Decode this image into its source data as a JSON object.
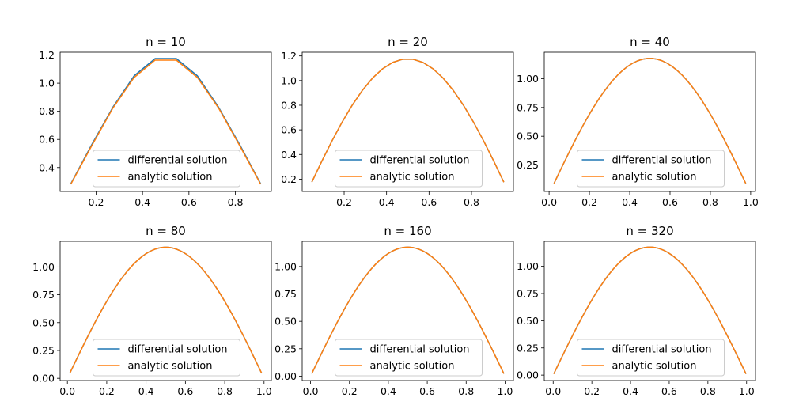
{
  "chart_data": [
    {
      "type": "line",
      "title": "n = 10",
      "n": 10,
      "xlim": [
        0.045,
        0.955
      ],
      "ylim": [
        0.23,
        1.22
      ],
      "xticks": [
        0.2,
        0.4,
        0.6,
        0.8
      ],
      "xticklabels": [
        "0.2",
        "0.4",
        "0.6",
        "0.8"
      ],
      "yticks": [
        0.4,
        0.6,
        0.8,
        1.0,
        1.2
      ],
      "yticklabels": [
        "0.4",
        "0.6",
        "0.8",
        "1.0",
        "1.2"
      ],
      "series": [
        {
          "name": "differential solution",
          "color": "#1f77b4",
          "x": [
            0.0909,
            0.1818,
            0.2727,
            0.3636,
            0.4545,
            0.5455,
            0.6364,
            0.7273,
            0.8182,
            0.9091
          ],
          "y": [
            0.284,
            0.565,
            0.83,
            1.052,
            1.175,
            1.175,
            1.052,
            0.83,
            0.565,
            0.284
          ]
        },
        {
          "name": "analytic solution",
          "color": "#ff7f0e",
          "x": [
            0.0909,
            0.1818,
            0.2727,
            0.3636,
            0.4545,
            0.5455,
            0.6364,
            0.7273,
            0.8182,
            0.9091
          ],
          "y": [
            0.281,
            0.557,
            0.824,
            1.04,
            1.164,
            1.164,
            1.04,
            0.824,
            0.557,
            0.281
          ]
        }
      ],
      "legend": "lower center",
      "grid": false
    },
    {
      "type": "line",
      "title": "n = 20",
      "n": 20,
      "xlim": [
        0.0024,
        0.9976
      ],
      "ylim": [
        0.1,
        1.23
      ],
      "xticks": [
        0.2,
        0.4,
        0.6,
        0.8
      ],
      "xticklabels": [
        "0.2",
        "0.4",
        "0.6",
        "0.8"
      ],
      "yticks": [
        0.2,
        0.4,
        0.6,
        0.8,
        1.0,
        1.2
      ],
      "yticklabels": [
        "0.2",
        "0.4",
        "0.6",
        "0.8",
        "1.0",
        "1.2"
      ],
      "series": [
        {
          "name": "differential solution",
          "color": "#1f77b4"
        },
        {
          "name": "analytic solution",
          "color": "#ff7f0e"
        }
      ],
      "legend": "lower center",
      "grid": false
    },
    {
      "type": "line",
      "title": "n = 40",
      "n": 40,
      "xlim": [
        -0.024,
        1.024
      ],
      "ylim": [
        0.02,
        1.23
      ],
      "xticks": [
        0.0,
        0.2,
        0.4,
        0.6,
        0.8,
        1.0
      ],
      "xticklabels": [
        "0.0",
        "0.2",
        "0.4",
        "0.6",
        "0.8",
        "1.0"
      ],
      "yticks": [
        0.25,
        0.5,
        0.75,
        1.0
      ],
      "yticklabels": [
        "0.25",
        "0.50",
        "0.75",
        "1.00"
      ],
      "series": [
        {
          "name": "differential solution",
          "color": "#1f77b4"
        },
        {
          "name": "analytic solution",
          "color": "#ff7f0e"
        }
      ],
      "legend": "lower center",
      "grid": false
    },
    {
      "type": "line",
      "title": "n = 80",
      "n": 80,
      "xlim": [
        -0.037,
        1.037
      ],
      "ylim": [
        -0.02,
        1.23
      ],
      "xticks": [
        0.0,
        0.2,
        0.4,
        0.6,
        0.8,
        1.0
      ],
      "xticklabels": [
        "0.0",
        "0.2",
        "0.4",
        "0.6",
        "0.8",
        "1.0"
      ],
      "yticks": [
        0.0,
        0.25,
        0.5,
        0.75,
        1.0
      ],
      "yticklabels": [
        "0.00",
        "0.25",
        "0.50",
        "0.75",
        "1.00"
      ],
      "series": [
        {
          "name": "differential solution",
          "color": "#1f77b4"
        },
        {
          "name": "analytic solution",
          "color": "#ff7f0e"
        }
      ],
      "legend": "lower center",
      "grid": false
    },
    {
      "type": "line",
      "title": "n = 160",
      "n": 160,
      "xlim": [
        -0.043,
        1.043
      ],
      "ylim": [
        -0.04,
        1.23
      ],
      "xticks": [
        0.0,
        0.2,
        0.4,
        0.6,
        0.8,
        1.0
      ],
      "xticklabels": [
        "0.0",
        "0.2",
        "0.4",
        "0.6",
        "0.8",
        "1.0"
      ],
      "yticks": [
        0.0,
        0.25,
        0.5,
        0.75,
        1.0
      ],
      "yticklabels": [
        "0.00",
        "0.25",
        "0.50",
        "0.75",
        "1.00"
      ],
      "series": [
        {
          "name": "differential solution",
          "color": "#1f77b4"
        },
        {
          "name": "analytic solution",
          "color": "#ff7f0e"
        }
      ],
      "legend": "lower center",
      "grid": false
    },
    {
      "type": "line",
      "title": "n = 320",
      "n": 320,
      "xlim": [
        -0.046,
        1.046
      ],
      "ylim": [
        -0.05,
        1.23
      ],
      "xticks": [
        0.0,
        0.2,
        0.4,
        0.6,
        0.8,
        1.0
      ],
      "xticklabels": [
        "0.0",
        "0.2",
        "0.4",
        "0.6",
        "0.8",
        "1.0"
      ],
      "yticks": [
        0.0,
        0.25,
        0.5,
        0.75,
        1.0
      ],
      "yticklabels": [
        "0.00",
        "0.25",
        "0.50",
        "0.75",
        "1.00"
      ],
      "series": [
        {
          "name": "differential solution",
          "color": "#1f77b4"
        },
        {
          "name": "analytic solution",
          "color": "#ff7f0e"
        }
      ],
      "legend": "lower center",
      "grid": false
    }
  ]
}
